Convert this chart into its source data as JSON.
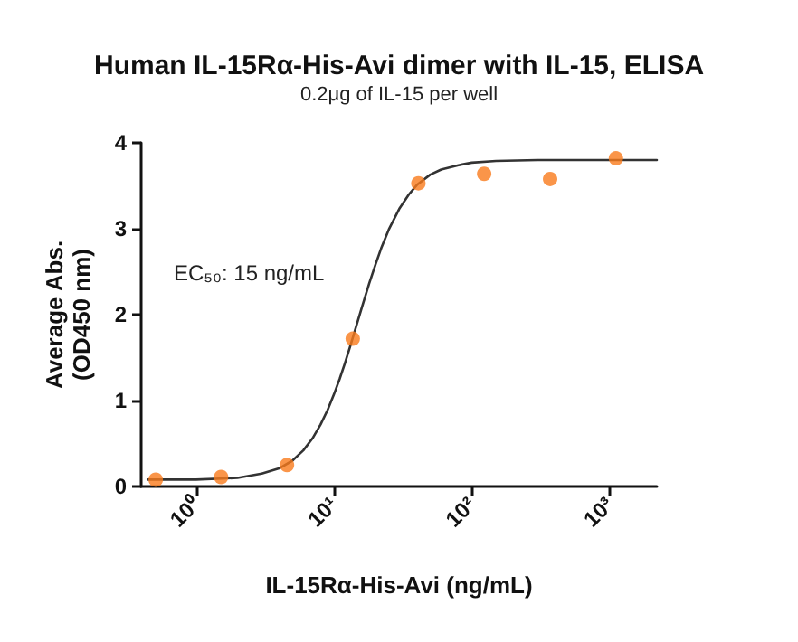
{
  "chart_data": {
    "type": "scatter",
    "title": "Human IL-15Rα-His-Avi dimer with IL-15, ELISA",
    "subtitle": "0.2μg of IL-15 per well",
    "xlabel": "IL-15Rα-His-Avi (ng/mL)",
    "ylabel": "Average Abs.\n(OD450 nm)",
    "annotations": [
      "EC₅₀: 15 ng/mL"
    ],
    "log": "x",
    "grid": false,
    "xlim": [
      0.4,
      2200
    ],
    "xticks": [
      {
        "value": 1,
        "label": "10⁰"
      },
      {
        "value": 10,
        "label": "10¹"
      },
      {
        "value": 100,
        "label": "10²"
      },
      {
        "value": 1000,
        "label": "10³"
      }
    ],
    "ylim": [
      0,
      4
    ],
    "yticks": [
      0,
      1,
      2,
      3,
      4
    ],
    "series": [
      {
        "type": "line",
        "color": "#333333",
        "marker": "none",
        "line_style": "solid",
        "x": [
          0.45,
          1,
          2,
          3,
          4,
          5,
          6,
          7,
          8,
          9,
          10,
          11,
          12,
          13,
          14,
          15,
          16,
          18,
          20,
          22,
          25,
          30,
          35,
          40,
          50,
          60,
          80,
          100,
          150,
          300,
          2200
        ],
        "values": [
          0.08,
          0.08,
          0.1,
          0.15,
          0.21,
          0.3,
          0.42,
          0.56,
          0.72,
          0.89,
          1.07,
          1.25,
          1.43,
          1.61,
          1.78,
          1.94,
          2.09,
          2.36,
          2.58,
          2.77,
          2.99,
          3.24,
          3.4,
          3.51,
          3.63,
          3.69,
          3.74,
          3.77,
          3.79,
          3.8,
          3.8
        ]
      },
      {
        "color": "#f97a1c",
        "marker": "circle",
        "x": [
          0.51,
          1.52,
          4.57,
          13.7,
          41,
          123,
          370,
          1111
        ],
        "values": [
          0.08,
          0.11,
          0.25,
          1.72,
          3.53,
          3.64,
          3.58,
          3.82
        ]
      }
    ]
  }
}
